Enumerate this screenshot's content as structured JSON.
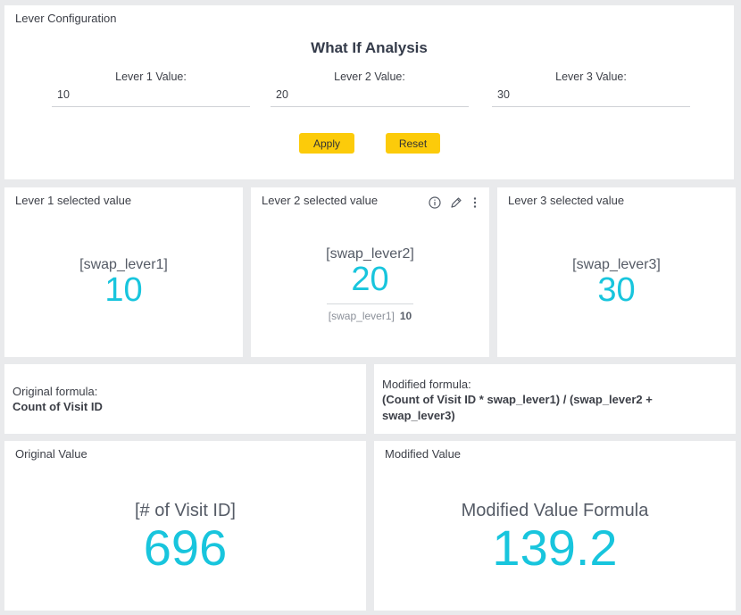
{
  "config": {
    "card_title": "Lever Configuration",
    "heading": "What If Analysis",
    "levers": [
      {
        "label": "Lever 1 Value:",
        "value": "10"
      },
      {
        "label": "Lever 2 Value:",
        "value": "20"
      },
      {
        "label": "Lever 3 Value:",
        "value": "30"
      }
    ],
    "apply_label": "Apply",
    "reset_label": "Reset",
    "button_color": "#fccb0a"
  },
  "selected": [
    {
      "title": "Lever 1 selected value",
      "field": "[swap_lever1]",
      "value": "10"
    },
    {
      "title": "Lever 2 selected value",
      "field": "[swap_lever2]",
      "value": "20",
      "comparison_field": "[swap_lever1]",
      "comparison_value": "10",
      "icons": [
        "info-icon",
        "edit-pencil-icon",
        "more-vertical-icon"
      ]
    },
    {
      "title": "Lever 3 selected value",
      "field": "[swap_lever3]",
      "value": "30"
    }
  ],
  "formulas": {
    "original_label": "Original formula:",
    "original_text": "Count of Visit ID",
    "modified_label": "Modified formula:",
    "modified_text_line1": "(Count of Visit ID * swap_lever1) / (swap_lever2 +",
    "modified_text_line2": "swap_lever3)"
  },
  "results": {
    "original": {
      "title": "Original Value",
      "name": "[# of Visit ID]",
      "value": "696"
    },
    "modified": {
      "title": "Modified Value",
      "name": "Modified Value Formula",
      "value": "139.2"
    }
  },
  "colors": {
    "accent": "#18c5dd",
    "background": "#e9eaec"
  }
}
